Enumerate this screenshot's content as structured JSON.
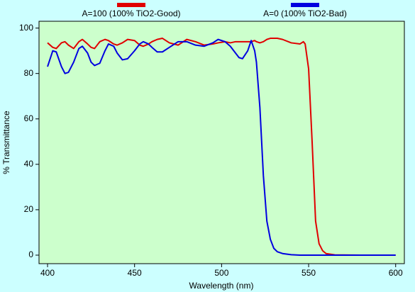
{
  "chart_data": {
    "type": "line",
    "xlabel": "Wavelength (nm)",
    "ylabel": "% Transmittance",
    "x": [
      400,
      403,
      405,
      408,
      410,
      412,
      415,
      418,
      420,
      423,
      425,
      427,
      430,
      433,
      435,
      438,
      440,
      443,
      446,
      450,
      453,
      455,
      458,
      460,
      463,
      466,
      470,
      475,
      480,
      485,
      490,
      495,
      498,
      502,
      505,
      508,
      510,
      512,
      515,
      517,
      519,
      520,
      522,
      524,
      526,
      528,
      530,
      532,
      535,
      540,
      545,
      547,
      548,
      550,
      552,
      554,
      556,
      558,
      560,
      565,
      580,
      600
    ],
    "series": [
      {
        "name": "A=100 (100% TiO2-Good)",
        "color": "#e00000",
        "values": [
          93.5,
          91.5,
          91,
          93.5,
          94,
          92.5,
          91,
          94,
          95,
          93,
          91.5,
          91,
          94,
          95,
          94.5,
          93,
          92.5,
          93.5,
          95,
          94.5,
          92.5,
          92,
          93,
          94,
          95,
          95.5,
          93.5,
          92.5,
          95,
          94,
          92.5,
          93,
          93.5,
          94,
          93.5,
          94,
          94,
          94,
          94,
          94,
          94.5,
          94,
          93.5,
          94,
          95,
          95.5,
          95.5,
          95.5,
          95,
          93.5,
          93,
          94,
          93,
          82,
          50,
          15,
          5,
          2,
          0.7,
          0.1,
          0,
          0
        ]
      },
      {
        "name": "A=0 (100% TiO2-Bad)",
        "color": "#0000e0",
        "values": [
          83,
          90,
          89.5,
          83,
          80,
          80.5,
          85,
          91,
          92,
          89,
          85,
          83.5,
          84.5,
          90,
          93,
          92,
          89,
          86,
          86.5,
          90,
          93,
          94,
          93,
          91.5,
          89.5,
          89.5,
          91.5,
          94,
          94,
          92.5,
          92,
          93.5,
          95,
          94,
          92,
          89,
          87,
          86.5,
          90,
          94.5,
          90,
          85,
          65,
          35,
          15,
          7,
          3,
          1.5,
          0.7,
          0.2,
          0,
          0,
          0,
          0,
          0,
          0,
          0,
          0,
          0,
          0,
          0,
          0
        ]
      }
    ],
    "xlim": [
      395.1,
      605
    ],
    "ylim": [
      -3.75,
      103
    ],
    "xticks": [
      400,
      450,
      500,
      550,
      600
    ],
    "yticks": [
      0,
      20,
      40,
      60,
      80,
      100
    ]
  }
}
